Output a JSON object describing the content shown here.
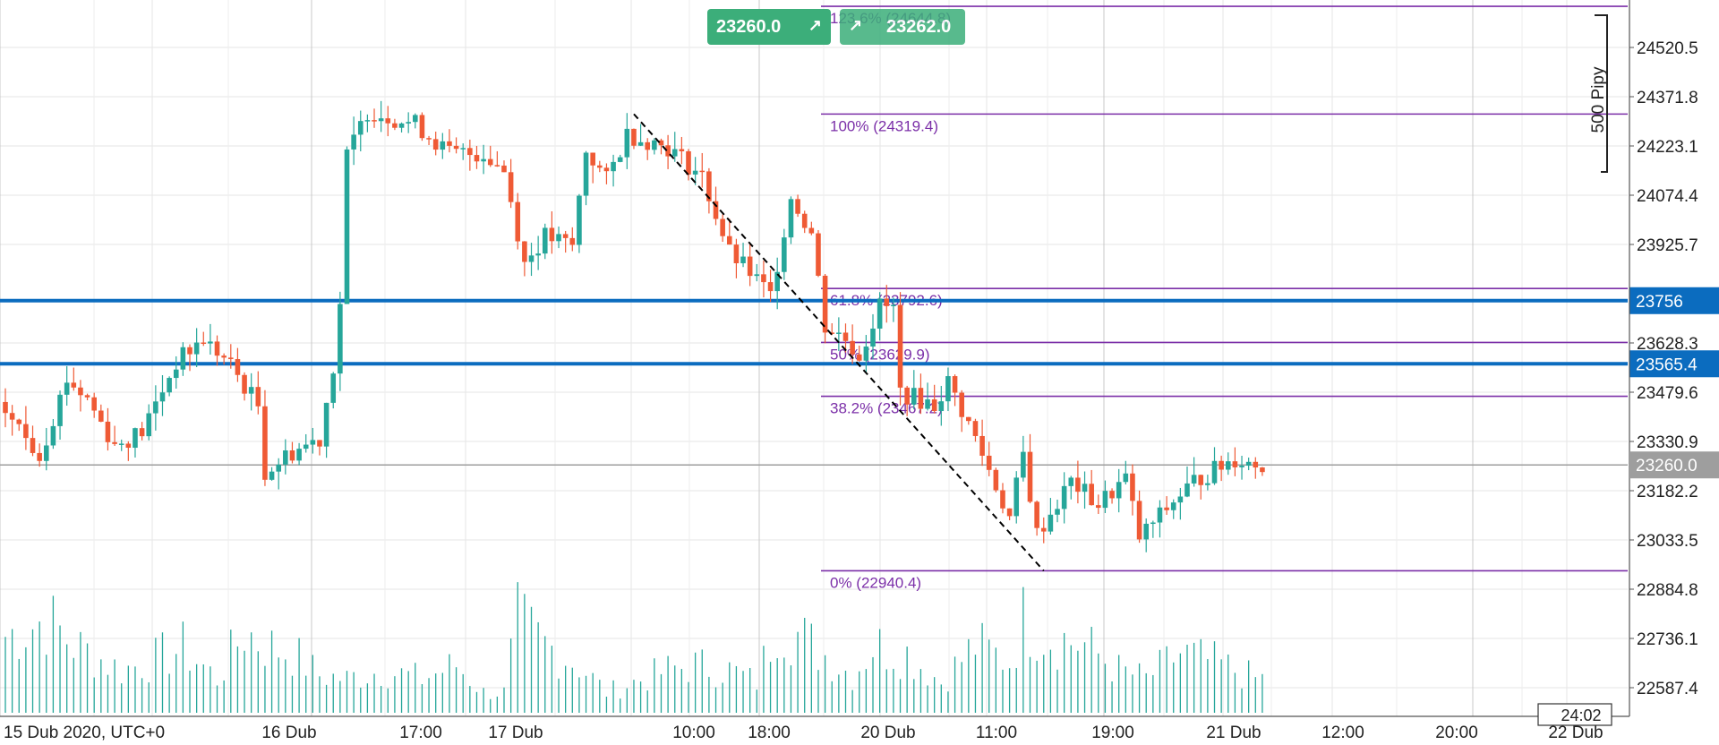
{
  "colors": {
    "up": "#26a69a",
    "down": "#ef5a35",
    "fib": "#7b2fa8",
    "level_line": "#0b6cbf",
    "current_line": "#9e9e9e",
    "grid": "#e6e6e6",
    "trend": "#000000"
  },
  "quote_buttons": {
    "sell_price": "23260.0",
    "buy_price": "23262.0",
    "sell_icon": "arrow-up-right-icon",
    "buy_icon": "arrow-up-right-icon"
  },
  "chart_data": {
    "type": "candlestick",
    "instrument_timezone_label": "15 Dub 2020, UTC+0",
    "y_axis": {
      "ticks": [
        24520.5,
        24371.8,
        24223.1,
        24074.4,
        23925.7,
        23628.3,
        23479.6,
        23330.9,
        23182.2,
        23033.5,
        22884.8,
        22736.1,
        22587.4
      ],
      "range": [
        22500,
        24640
      ]
    },
    "x_axis": {
      "ticks": [
        "15 Dub 2020, UTC+0",
        "16 Dub",
        "17:00",
        "17 Dub",
        "10:00",
        "18:00",
        "20 Dub",
        "11:00",
        "19:00",
        "21 Dub",
        "12:00",
        "20:00",
        "22 Dub"
      ],
      "candle_count": 185
    },
    "current_price": {
      "value": 23260,
      "label": "23260.0"
    },
    "horizontal_levels": [
      {
        "value": 23756,
        "label": "23756"
      },
      {
        "value": 23565.4,
        "label": "23565.4"
      }
    ],
    "fibonacci": {
      "high": 24319.4,
      "low": 22940.4,
      "levels": [
        {
          "label": "123.6% (24644.8)",
          "value": 24644.8
        },
        {
          "label": "100% (24319.4)",
          "value": 24319.4
        },
        {
          "label": "61.8% (23792.6)",
          "value": 23792.6
        },
        {
          "label": "50% (23629.9)",
          "value": 23629.9
        },
        {
          "label": "38.2% (23467.2)",
          "value": 23467.2
        },
        {
          "label": "0% (22940.4)",
          "value": 22940.4
        }
      ]
    },
    "trend_line": {
      "from": {
        "candle": 92,
        "price": 24319.4
      },
      "to": {
        "candle": 152,
        "price": 22940.4
      }
    },
    "range_marker": {
      "label": "500 Pipy",
      "from": 24644.8,
      "to": 24144.8
    },
    "time_remaining": "24:02",
    "price_path": [
      [
        0,
        23450
      ],
      [
        6,
        23290
      ],
      [
        10,
        23520
      ],
      [
        13,
        23460
      ],
      [
        17,
        23320
      ],
      [
        21,
        23360
      ],
      [
        26,
        23570
      ],
      [
        30,
        23640
      ],
      [
        34,
        23560
      ],
      [
        38,
        23440
      ],
      [
        39,
        23240
      ],
      [
        43,
        23300
      ],
      [
        47,
        23340
      ],
      [
        49,
        23560
      ],
      [
        50,
        23750
      ],
      [
        51,
        24190
      ],
      [
        54,
        24330
      ],
      [
        61,
        24290
      ],
      [
        66,
        24200
      ],
      [
        71,
        24200
      ],
      [
        74,
        24150
      ],
      [
        77,
        23870
      ],
      [
        80,
        23950
      ],
      [
        84,
        23920
      ],
      [
        86,
        24210
      ],
      [
        89,
        24120
      ],
      [
        92,
        24260
      ],
      [
        98,
        24220
      ],
      [
        103,
        24130
      ],
      [
        107,
        23900
      ],
      [
        110,
        23840
      ],
      [
        113,
        23770
      ],
      [
        116,
        24070
      ],
      [
        119,
        23960
      ],
      [
        121,
        23680
      ],
      [
        124,
        23640
      ],
      [
        126,
        23590
      ],
      [
        129,
        23740
      ],
      [
        131,
        23730
      ],
      [
        132,
        23480
      ],
      [
        137,
        23440
      ],
      [
        139,
        23510
      ],
      [
        143,
        23340
      ],
      [
        148,
        23100
      ],
      [
        150,
        23290
      ],
      [
        152,
        23050
      ],
      [
        157,
        23210
      ],
      [
        161,
        23140
      ],
      [
        165,
        23220
      ],
      [
        167,
        23040
      ],
      [
        172,
        23150
      ],
      [
        175,
        23210
      ],
      [
        181,
        23280
      ],
      [
        184,
        23260
      ]
    ],
    "volume_profile": [
      [
        0,
        45
      ],
      [
        6,
        55
      ],
      [
        10,
        40
      ],
      [
        17,
        25
      ],
      [
        21,
        30
      ],
      [
        26,
        38
      ],
      [
        31,
        20
      ],
      [
        35,
        48
      ],
      [
        38,
        40
      ],
      [
        42,
        35
      ],
      [
        46,
        22
      ],
      [
        50,
        20
      ],
      [
        55,
        25
      ],
      [
        61,
        20
      ],
      [
        66,
        28
      ],
      [
        70,
        12
      ],
      [
        73,
        12
      ],
      [
        75,
        54
      ],
      [
        79,
        40
      ],
      [
        84,
        28
      ],
      [
        88,
        12
      ],
      [
        92,
        18
      ],
      [
        97,
        25
      ],
      [
        101,
        28
      ],
      [
        106,
        25
      ],
      [
        110,
        18
      ],
      [
        113,
        55
      ],
      [
        118,
        40
      ],
      [
        124,
        22
      ],
      [
        127,
        40
      ],
      [
        132,
        35
      ],
      [
        137,
        18
      ],
      [
        142,
        40
      ],
      [
        147,
        30
      ],
      [
        149,
        55
      ],
      [
        153,
        45
      ],
      [
        158,
        40
      ],
      [
        163,
        25
      ],
      [
        167,
        20
      ],
      [
        172,
        35
      ],
      [
        178,
        28
      ],
      [
        183,
        20
      ]
    ]
  }
}
